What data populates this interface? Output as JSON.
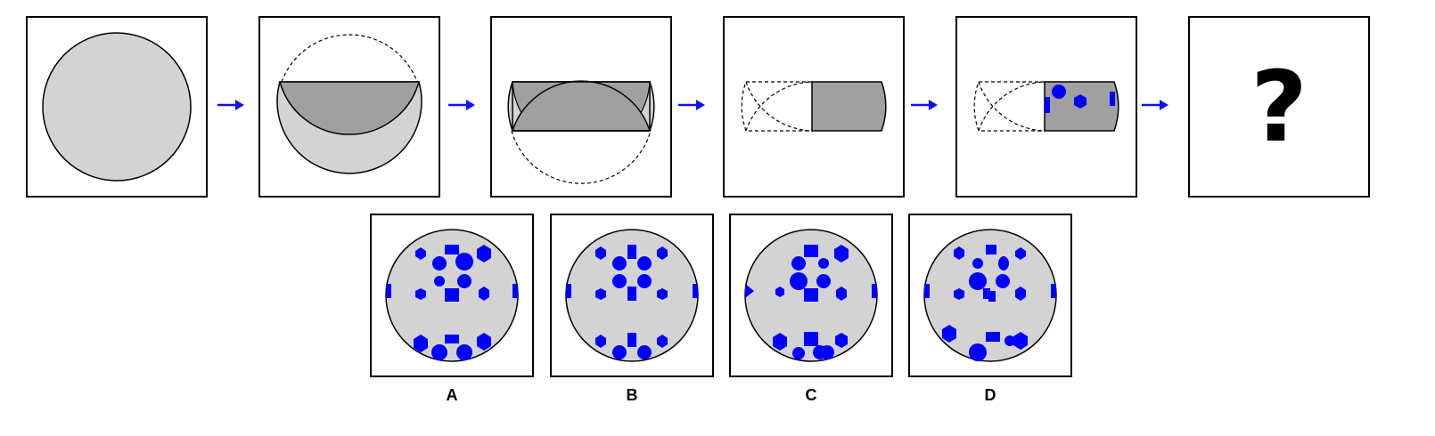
{
  "puzzle": {
    "question_mark": "?",
    "arrow_icon": "right-arrow-icon",
    "colors": {
      "paper": "#d3d3d3",
      "paper_folded": "#a0a0a0",
      "hole": "#0000ff",
      "arrow": "#1010ff",
      "outline": "#000000"
    }
  },
  "options": [
    {
      "label": "A"
    },
    {
      "label": "B"
    },
    {
      "label": "C"
    },
    {
      "label": "D"
    }
  ]
}
